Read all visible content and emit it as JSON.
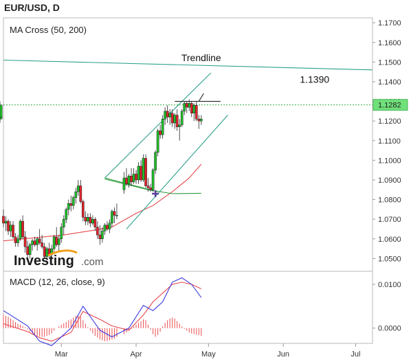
{
  "symbol_title": "EUR/USD, D",
  "watermark": {
    "brand": "Investing",
    "suffix": ".com"
  },
  "colors": {
    "bull": "#1fbf2a",
    "bear": "#e0242c",
    "ma50": "#2e9a3c",
    "ma200": "#e8484c",
    "trend": "#2aa08a",
    "macd": "#3a3ae0",
    "signal": "#e8484c",
    "dotted": "#2eaa3c",
    "priceBox": "#6fe07a",
    "marker": "#5b3d9a"
  },
  "chart_data": [
    {
      "type": "candlestick",
      "title": "MA Cross (50, 200)",
      "x_ticks": [
        "Mar",
        "Apr",
        "May",
        "Jun",
        "Jul"
      ],
      "x_tick_day": [
        24,
        55,
        85,
        116,
        146
      ],
      "y_ticks": [
        "1.1700",
        "1.1600",
        "1.1500",
        "1.1400",
        "1.1300",
        "1.1200",
        "1.1100",
        "1.1000",
        "1.0900",
        "1.0800",
        "1.0700",
        "1.0600",
        "1.0500"
      ],
      "ylim": [
        1.0435,
        1.1725
      ],
      "xlim": [
        0,
        153
      ],
      "current_price": "1.1282",
      "annotations": [
        {
          "text": "Trendline",
          "day": 82,
          "price": 1.1505
        },
        {
          "text": "1.1390",
          "day": 129,
          "price": 1.1395
        }
      ],
      "ohlc": [
        [
          1.0715,
          1.075,
          1.066,
          1.068
        ],
        [
          1.068,
          1.0715,
          1.064,
          1.069
        ],
        [
          1.069,
          1.07,
          1.062,
          1.064
        ],
        [
          1.064,
          1.069,
          1.061,
          1.067
        ],
        [
          1.067,
          1.069,
          1.06,
          1.061
        ],
        [
          1.061,
          1.063,
          1.056,
          1.058
        ],
        [
          1.058,
          1.062,
          1.056,
          1.06
        ],
        [
          1.06,
          1.07,
          1.059,
          1.069
        ],
        [
          1.069,
          1.072,
          1.06,
          1.061
        ],
        [
          1.061,
          1.064,
          1.053,
          1.056
        ],
        [
          1.056,
          1.059,
          1.05,
          1.052
        ],
        [
          1.052,
          1.058,
          1.05,
          1.057
        ],
        [
          1.057,
          1.06,
          1.054,
          1.059
        ],
        [
          1.059,
          1.061,
          1.056,
          1.057
        ],
        [
          1.057,
          1.061,
          1.054,
          1.06
        ],
        [
          1.06,
          1.065,
          1.057,
          1.058
        ],
        [
          1.058,
          1.062,
          1.055,
          1.056
        ],
        [
          1.056,
          1.058,
          1.05,
          1.051
        ],
        [
          1.051,
          1.056,
          1.049,
          1.055
        ],
        [
          1.055,
          1.058,
          1.05,
          1.052
        ],
        [
          1.052,
          1.057,
          1.048,
          1.055
        ],
        [
          1.055,
          1.062,
          1.053,
          1.061
        ],
        [
          1.061,
          1.066,
          1.056,
          1.057
        ],
        [
          1.057,
          1.062,
          1.054,
          1.06
        ],
        [
          1.06,
          1.068,
          1.058,
          1.066
        ],
        [
          1.066,
          1.072,
          1.062,
          1.07
        ],
        [
          1.07,
          1.076,
          1.068,
          1.075
        ],
        [
          1.075,
          1.08,
          1.072,
          1.078
        ],
        [
          1.078,
          1.082,
          1.074,
          1.077
        ],
        [
          1.077,
          1.082,
          1.075,
          1.081
        ],
        [
          1.081,
          1.086,
          1.078,
          1.084
        ],
        [
          1.084,
          1.09,
          1.082,
          1.087
        ],
        [
          1.087,
          1.09,
          1.078,
          1.079
        ],
        [
          1.079,
          1.08,
          1.069,
          1.071
        ],
        [
          1.071,
          1.074,
          1.067,
          1.069
        ],
        [
          1.069,
          1.073,
          1.067,
          1.071
        ],
        [
          1.071,
          1.073,
          1.066,
          1.068
        ],
        [
          1.068,
          1.072,
          1.067,
          1.07
        ],
        [
          1.07,
          1.071,
          1.064,
          1.066
        ],
        [
          1.066,
          1.069,
          1.06,
          1.062
        ],
        [
          1.062,
          1.067,
          1.057,
          1.06
        ],
        [
          1.06,
          1.066,
          1.058,
          1.064
        ],
        [
          1.064,
          1.068,
          1.062,
          1.067
        ],
        [
          1.067,
          1.069,
          1.064,
          1.065
        ],
        [
          1.065,
          1.07,
          1.063,
          1.068
        ],
        [
          1.068,
          1.075,
          1.066,
          1.074
        ],
        [
          1.074,
          1.076,
          1.068,
          1.072
        ],
        [
          1.072,
          1.078,
          1.07,
          1.072
        ],
        [
          1.085,
          1.094,
          1.083,
          1.091
        ],
        [
          1.091,
          1.096,
          1.087,
          1.088
        ],
        [
          1.088,
          1.093,
          1.086,
          1.092
        ],
        [
          1.092,
          1.096,
          1.087,
          1.089
        ],
        [
          1.089,
          1.096,
          1.088,
          1.093
        ],
        [
          1.093,
          1.095,
          1.088,
          1.09
        ],
        [
          1.09,
          1.099,
          1.088,
          1.097
        ],
        [
          1.097,
          1.1,
          1.089,
          1.09
        ],
        [
          1.09,
          1.103,
          1.089,
          1.101
        ],
        [
          1.101,
          1.103,
          1.086,
          1.087
        ],
        [
          1.087,
          1.091,
          1.084,
          1.086
        ],
        [
          1.086,
          1.088,
          1.084,
          1.085
        ],
        [
          1.085,
          1.096,
          1.084,
          1.095
        ],
        [
          1.095,
          1.105,
          1.093,
          1.104
        ],
        [
          1.104,
          1.116,
          1.102,
          1.115
        ],
        [
          1.115,
          1.118,
          1.111,
          1.113
        ],
        [
          1.113,
          1.123,
          1.111,
          1.121
        ],
        [
          1.121,
          1.127,
          1.118,
          1.125
        ],
        [
          1.125,
          1.128,
          1.119,
          1.122
        ],
        [
          1.122,
          1.126,
          1.118,
          1.124
        ],
        [
          1.124,
          1.126,
          1.117,
          1.119
        ],
        [
          1.119,
          1.124,
          1.116,
          1.123
        ],
        [
          1.123,
          1.126,
          1.115,
          1.117
        ],
        [
          1.117,
          1.121,
          1.11,
          1.118
        ],
        [
          1.118,
          1.126,
          1.117,
          1.125
        ],
        [
          1.125,
          1.13,
          1.123,
          1.129
        ],
        [
          1.129,
          1.13,
          1.124,
          1.127
        ],
        [
          1.127,
          1.131,
          1.125,
          1.129
        ],
        [
          1.129,
          1.13,
          1.122,
          1.124
        ],
        [
          1.124,
          1.129,
          1.12,
          1.128
        ],
        [
          1.128,
          1.13,
          1.12,
          1.121
        ],
        [
          1.121,
          1.123,
          1.116,
          1.12
        ],
        [
          1.12,
          1.123,
          1.118,
          1.121
        ],
        [
          1.121,
          1.125,
          1.119,
          1.122
        ],
        [
          1.122,
          1.13,
          1.12,
          1.1282
        ]
      ],
      "ohlc_days": [
        0,
        1,
        2,
        3,
        4,
        5,
        6,
        7,
        8,
        9,
        10,
        11,
        12,
        13,
        14,
        15,
        16,
        17,
        18,
        19,
        20,
        21,
        22,
        23,
        24,
        25,
        26,
        27,
        28,
        29,
        30,
        31,
        32,
        33,
        34,
        35,
        36,
        37,
        38,
        39,
        40,
        41,
        42,
        43,
        44,
        45,
        46,
        47,
        50,
        51,
        52,
        53,
        54,
        55,
        56,
        57,
        58,
        59,
        60,
        61,
        62,
        63,
        64,
        65,
        66,
        67,
        68,
        69,
        70,
        71,
        72,
        73,
        74,
        75,
        76,
        77,
        78,
        79,
        80,
        81,
        82
      ],
      "ma50_days": [
        42,
        60,
        70,
        82
      ],
      "ma50": [
        1.0905,
        1.085,
        1.083,
        1.0832
      ],
      "ma200_days": [
        0,
        25,
        38,
        45,
        55,
        62,
        70,
        77,
        82
      ],
      "ma200": [
        1.059,
        1.062,
        1.0645,
        1.066,
        1.073,
        1.077,
        1.084,
        1.091,
        1.098
      ],
      "cross_marker": {
        "day": 63,
        "price": 1.083
      },
      "lines": [
        {
          "name": "Trendline",
          "points": [
            [
              0,
              1.151
            ],
            [
              153,
              1.146
            ]
          ]
        },
        {
          "points": [
            [
              42,
              1.091
            ],
            [
              86,
              1.1445
            ]
          ]
        },
        {
          "points": [
            [
              51,
              1.065
            ],
            [
              93,
              1.123
            ]
          ]
        },
        {
          "points": [
            [
              42,
              1.091
            ],
            [
              64,
              1.084
            ]
          ]
        },
        {
          "points": [
            [
              71,
              1.13
            ],
            [
              90,
              1.13
            ]
          ]
        },
        {
          "points": [
            [
              81,
              1.13
            ],
            [
              83,
              1.134
            ]
          ]
        }
      ],
      "dotted_price": 1.1282
    },
    {
      "type": "macd",
      "title": "MACD (12, 26, close, 9)",
      "y_ticks": [
        "0.0100",
        "0.0000"
      ],
      "ylim": [
        -0.0035,
        0.013
      ],
      "macd_days": [
        0,
        10,
        15,
        20,
        28,
        33,
        40,
        45,
        52,
        58,
        62,
        66,
        70,
        74,
        78,
        82
      ],
      "macd": [
        0.004,
        0.0005,
        -0.003,
        -0.004,
        0.0,
        0.005,
        -0.0005,
        -0.002,
        0.0,
        0.0052,
        0.004,
        0.006,
        0.0105,
        0.0115,
        0.01,
        0.007
      ],
      "signal_days": [
        0,
        10,
        15,
        20,
        28,
        33,
        40,
        45,
        52,
        58,
        62,
        66,
        70,
        74,
        78,
        82
      ],
      "signal": [
        0.001,
        -0.0008,
        -0.0022,
        -0.003,
        -0.001,
        0.0038,
        0.002,
        0.0005,
        -0.0005,
        0.003,
        0.006,
        0.008,
        0.01,
        0.0105,
        0.01,
        0.009
      ],
      "hist_days": [
        0,
        1,
        2,
        3,
        4,
        5,
        6,
        7,
        8,
        9,
        10,
        11,
        12,
        13,
        14,
        15,
        16,
        17,
        18,
        19,
        20,
        21,
        22,
        23,
        24,
        25,
        26,
        27,
        28,
        29,
        30,
        31,
        32,
        33,
        34,
        35,
        36,
        37,
        38,
        39,
        40,
        41,
        42,
        43,
        44,
        45,
        46,
        47,
        50,
        51,
        52,
        53,
        54,
        55,
        56,
        57,
        58,
        59,
        60,
        61,
        62,
        63,
        64,
        65,
        66,
        67,
        68,
        69,
        70,
        71,
        72,
        73,
        74,
        75,
        76,
        77,
        78,
        79,
        80,
        81,
        82
      ],
      "hist": [
        0.003,
        0.0028,
        0.0026,
        0.0022,
        0.0018,
        0.0014,
        0.001,
        0.0008,
        0.0005,
        0.0002,
        -0.0003,
        -0.0008,
        -0.0012,
        -0.0015,
        -0.0018,
        -0.0019,
        -0.002,
        -0.002,
        -0.0018,
        -0.0016,
        -0.0012,
        -0.0006,
        0.0,
        0.0004,
        0.0008,
        0.0011,
        0.0014,
        0.0018,
        0.002,
        0.0024,
        0.0028,
        0.003,
        0.0026,
        0.0018,
        0.001,
        0.0002,
        -0.0006,
        -0.0012,
        -0.0018,
        -0.0022,
        -0.0026,
        -0.0028,
        -0.003,
        -0.003,
        -0.0028,
        -0.0026,
        -0.0024,
        -0.002,
        -0.0014,
        -0.001,
        -0.0006,
        -0.0002,
        0.0004,
        0.0008,
        0.0012,
        0.0016,
        0.002,
        0.0018,
        0.0008,
        -0.0004,
        -0.0014,
        -0.002,
        -0.0016,
        -0.0008,
        0.0004,
        0.0012,
        0.0018,
        0.0022,
        0.0024,
        0.0022,
        0.0016,
        0.001,
        0.0004,
        -0.0002,
        -0.0006,
        -0.001,
        -0.0012,
        -0.0014,
        -0.0015,
        -0.0016,
        -0.0018
      ]
    }
  ]
}
